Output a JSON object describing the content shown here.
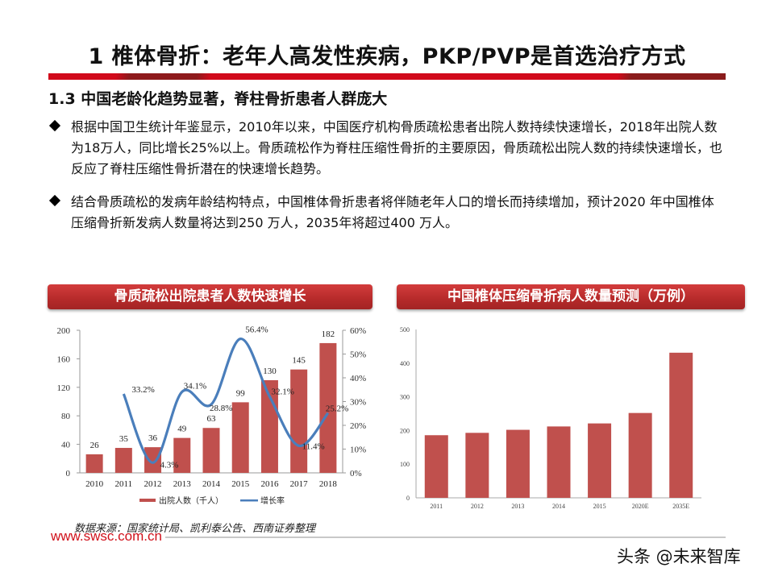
{
  "slide": {
    "title": "1  椎体骨折：老年人高发性疾病，PKP/PVP是首选治疗方式",
    "subtitle": "1.3 中国老龄化趋势显著，脊柱骨折患者人群庞大",
    "bullets": [
      "根据中国卫生统计年鉴显示，2010年以来，中国医疗机构骨质疏松患者出院人数持续快速增长，2018年出院人数为18万人，同比增长25%以上。骨质疏松作为脊柱压缩性骨折的主要原因，骨质疏松出院人数的持续快速增长，也反应了脊柱压缩性骨折潜在的快速增长趋势。",
      "结合骨质疏松的发病年龄结构特点，中国椎体骨折患者将伴随老年人口的增长而持续增加，预计2020 年中国椎体压缩骨折新发病人数量将达到250 万人，2035年将超过400 万人。"
    ],
    "source": "数据来源：国家统计局、凯利泰公告、西南证券整理",
    "url": "www.swsc.com.cn",
    "watermark": "头条 @未来智库",
    "colors": {
      "accent_red": "#d10a1b",
      "bar_red": "#c0504d",
      "line_blue": "#4a7ebb"
    }
  },
  "chart_data": [
    {
      "type": "bar+line",
      "title": "骨质疏松出院患者人数快速增长",
      "categories": [
        "2010",
        "2011",
        "2012",
        "2013",
        "2014",
        "2015",
        "2016",
        "2017",
        "2018"
      ],
      "series": [
        {
          "name": "出院人数（千人）",
          "type": "bar",
          "axis": "left",
          "values": [
            26,
            35,
            36,
            49,
            63,
            99,
            130,
            145,
            182
          ]
        },
        {
          "name": "增长率",
          "type": "line",
          "axis": "right",
          "values": [
            null,
            33.2,
            4.3,
            34.1,
            28.8,
            56.4,
            32.1,
            11.4,
            25.2
          ],
          "labels": [
            "",
            "33.2%",
            "4.3%",
            "34.1%",
            "28.8%",
            "56.4%",
            "32.1%",
            "11.4%",
            "25.2%"
          ]
        }
      ],
      "y_left": {
        "ylim": [
          0,
          200
        ],
        "ticks": [
          "0",
          "40",
          "80",
          "120",
          "160",
          "200"
        ]
      },
      "y_right": {
        "ylim": [
          0,
          60
        ],
        "ticks": [
          "0%",
          "10%",
          "20%",
          "30%",
          "40%",
          "50%",
          "60%"
        ]
      },
      "legend": [
        "出院人数（千人）",
        "增长率"
      ],
      "legend_position": "bottom",
      "grid": false
    },
    {
      "type": "bar",
      "title": "中国椎体压缩骨折病人数量预测（万例）",
      "categories": [
        "2011",
        "2012",
        "2013",
        "2014",
        "2015",
        "2020E",
        "2035E"
      ],
      "values": [
        186,
        193,
        202,
        212,
        221,
        252,
        431
      ],
      "ylim": [
        0,
        500
      ],
      "ticks": [
        "0",
        "100",
        "200",
        "300",
        "400",
        "500"
      ],
      "xlabel": "",
      "ylabel": "",
      "grid": false
    }
  ]
}
